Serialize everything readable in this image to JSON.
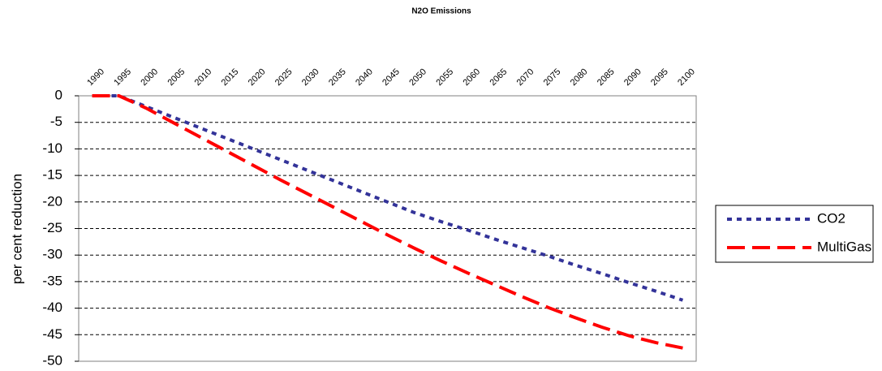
{
  "chart_data": {
    "type": "line",
    "title": "N2O Emissions",
    "y_label": "per cent reduction",
    "categories": [
      "1990",
      "1995",
      "2000",
      "2005",
      "2010",
      "2015",
      "2020",
      "2025",
      "2030",
      "2035",
      "2040",
      "2045",
      "2050",
      "2055",
      "2060",
      "2065",
      "2070",
      "2075",
      "2080",
      "2085",
      "2090",
      "2095",
      "2100"
    ],
    "series": [
      {
        "name": "CO2",
        "color": "#333399",
        "values": [
          0,
          0,
          -2,
          -4,
          -6,
          -8,
          -10,
          -12,
          -14,
          -16,
          -18,
          -20,
          -22,
          -23.7,
          -25.3,
          -27,
          -28.6,
          -30.2,
          -31.9,
          -33.5,
          -35.2,
          -36.8,
          -38.5
        ]
      },
      {
        "name": "MultiGas",
        "color": "#ff0000",
        "values": [
          0,
          0,
          -2.3,
          -5,
          -7.7,
          -10.4,
          -13.1,
          -15.8,
          -18.4,
          -21,
          -23.6,
          -26.2,
          -28.7,
          -31.1,
          -33.4,
          -35.6,
          -37.8,
          -39.9,
          -41.8,
          -43.6,
          -45.2,
          -46.5,
          -47.5
        ]
      }
    ],
    "ylim": [
      -50,
      0
    ],
    "yticks": [
      0,
      -5,
      -10,
      -15,
      -20,
      -25,
      -30,
      -35,
      -40,
      -45,
      -50
    ],
    "grid": true,
    "legend": "right"
  }
}
